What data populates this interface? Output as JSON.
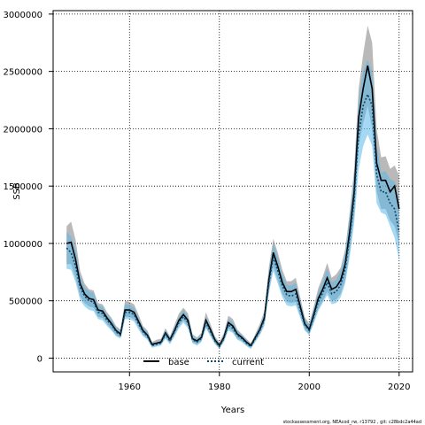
{
  "chart_data": {
    "type": "line",
    "title": "",
    "xlabel": "Years",
    "ylabel": "SSB",
    "xlim": [
      1943,
      2023
    ],
    "ylim": [
      -120000,
      3030000
    ],
    "xticks": [
      1960,
      1980,
      2000,
      2020
    ],
    "yticks": [
      0,
      500000,
      1000000,
      1500000,
      2000000,
      2500000,
      3000000
    ],
    "ytick_labels": [
      "0",
      "500000",
      "1000000",
      "1500000",
      "2000000",
      "2500000",
      "3000000"
    ],
    "grid": true,
    "legend_position": "bottom-center",
    "x": [
      1946,
      1947,
      1948,
      1949,
      1950,
      1951,
      1952,
      1953,
      1954,
      1955,
      1956,
      1957,
      1958,
      1959,
      1960,
      1961,
      1962,
      1963,
      1964,
      1965,
      1966,
      1967,
      1968,
      1969,
      1970,
      1971,
      1972,
      1973,
      1974,
      1975,
      1976,
      1977,
      1978,
      1979,
      1980,
      1981,
      1982,
      1983,
      1984,
      1985,
      1986,
      1987,
      1988,
      1989,
      1990,
      1991,
      1992,
      1993,
      1994,
      1995,
      1996,
      1997,
      1998,
      1999,
      2000,
      2001,
      2002,
      2003,
      2004,
      2005,
      2006,
      2007,
      2008,
      2009,
      2010,
      2011,
      2012,
      2013,
      2014,
      2015,
      2016,
      2017,
      2018,
      2019,
      2020
    ],
    "series": [
      {
        "name": "base",
        "color": "#000000",
        "band_color": "#7f7f7f",
        "values": [
          1000000,
          1010000,
          860000,
          650000,
          560000,
          520000,
          510000,
          420000,
          410000,
          350000,
          300000,
          240000,
          210000,
          420000,
          420000,
          400000,
          320000,
          240000,
          200000,
          120000,
          130000,
          140000,
          220000,
          160000,
          240000,
          330000,
          380000,
          330000,
          170000,
          150000,
          180000,
          330000,
          250000,
          160000,
          110000,
          180000,
          310000,
          280000,
          210000,
          180000,
          140000,
          110000,
          180000,
          250000,
          350000,
          680000,
          920000,
          800000,
          660000,
          580000,
          580000,
          600000,
          450000,
          300000,
          250000,
          380000,
          520000,
          600000,
          700000,
          600000,
          620000,
          680000,
          820000,
          1100000,
          1450000,
          2100000,
          2350000,
          2550000,
          2350000,
          1700000,
          1550000,
          1550000,
          1450000,
          1500000,
          1300000
        ],
        "lower": [
          820000,
          820000,
          700000,
          540000,
          480000,
          450000,
          440000,
          360000,
          350000,
          300000,
          250000,
          200000,
          180000,
          360000,
          360000,
          340000,
          270000,
          200000,
          170000,
          100000,
          110000,
          120000,
          180000,
          130000,
          200000,
          280000,
          330000,
          280000,
          140000,
          120000,
          150000,
          270000,
          200000,
          130000,
          90000,
          150000,
          260000,
          230000,
          170000,
          150000,
          115000,
          90000,
          150000,
          210000,
          300000,
          580000,
          800000,
          680000,
          560000,
          490000,
          480000,
          490000,
          370000,
          250000,
          210000,
          320000,
          430000,
          500000,
          580000,
          500000,
          510000,
          560000,
          680000,
          920000,
          1250000,
          1850000,
          2050000,
          2200000,
          2000000,
          1450000,
          1300000,
          1300000,
          1200000,
          1150000,
          1000000
        ],
        "upper": [
          1150000,
          1190000,
          1030000,
          760000,
          650000,
          600000,
          590000,
          480000,
          470000,
          400000,
          350000,
          280000,
          250000,
          500000,
          490000,
          470000,
          380000,
          280000,
          240000,
          140000,
          160000,
          170000,
          260000,
          190000,
          290000,
          390000,
          440000,
          390000,
          210000,
          180000,
          220000,
          400000,
          300000,
          190000,
          140000,
          220000,
          370000,
          340000,
          250000,
          210000,
          170000,
          130000,
          210000,
          300000,
          410000,
          790000,
          1040000,
          920000,
          770000,
          670000,
          670000,
          700000,
          530000,
          360000,
          300000,
          450000,
          610000,
          710000,
          830000,
          700000,
          730000,
          790000,
          950000,
          1270000,
          1650000,
          2350000,
          2650000,
          2900000,
          2750000,
          2000000,
          1750000,
          1760000,
          1650000,
          1680000,
          1590000
        ]
      },
      {
        "name": "current",
        "color": "#0b4a6e",
        "band_color": "#5bb8e8",
        "values": [
          960000,
          920000,
          800000,
          620000,
          540000,
          500000,
          490000,
          400000,
          390000,
          330000,
          290000,
          230000,
          200000,
          400000,
          400000,
          380000,
          300000,
          230000,
          190000,
          110000,
          120000,
          130000,
          210000,
          150000,
          230000,
          310000,
          360000,
          310000,
          160000,
          140000,
          170000,
          310000,
          230000,
          150000,
          100000,
          170000,
          290000,
          260000,
          200000,
          170000,
          130000,
          100000,
          170000,
          240000,
          330000,
          650000,
          880000,
          760000,
          630000,
          550000,
          540000,
          560000,
          420000,
          290000,
          240000,
          360000,
          490000,
          570000,
          660000,
          560000,
          580000,
          640000,
          780000,
          1050000,
          1380000,
          1950000,
          2200000,
          2300000,
          2200000,
          1600000,
          1450000,
          1450000,
          1350000,
          1300000,
          1100000
        ],
        "lower": [
          780000,
          770000,
          660000,
          510000,
          450000,
          420000,
          410000,
          340000,
          330000,
          280000,
          240000,
          190000,
          170000,
          340000,
          340000,
          320000,
          250000,
          190000,
          160000,
          90000,
          100000,
          110000,
          170000,
          120000,
          190000,
          260000,
          310000,
          260000,
          130000,
          110000,
          140000,
          260000,
          190000,
          120000,
          80000,
          140000,
          240000,
          220000,
          160000,
          140000,
          105000,
          80000,
          140000,
          200000,
          280000,
          560000,
          760000,
          650000,
          530000,
          460000,
          450000,
          460000,
          350000,
          240000,
          200000,
          300000,
          410000,
          480000,
          550000,
          470000,
          480000,
          530000,
          650000,
          880000,
          1180000,
          1650000,
          1850000,
          1950000,
          1850000,
          1350000,
          1270000,
          1250000,
          1150000,
          1050000,
          850000
        ],
        "upper": [
          1100000,
          1060000,
          950000,
          720000,
          620000,
          580000,
          570000,
          460000,
          450000,
          380000,
          340000,
          270000,
          240000,
          470000,
          460000,
          440000,
          350000,
          270000,
          230000,
          130000,
          140000,
          150000,
          250000,
          180000,
          270000,
          360000,
          420000,
          360000,
          190000,
          170000,
          200000,
          360000,
          270000,
          180000,
          120000,
          200000,
          340000,
          310000,
          240000,
          200000,
          160000,
          120000,
          200000,
          280000,
          390000,
          750000,
          1000000,
          880000,
          730000,
          640000,
          630000,
          660000,
          500000,
          340000,
          290000,
          430000,
          580000,
          670000,
          780000,
          660000,
          680000,
          760000,
          920000,
          1230000,
          1600000,
          2250000,
          2500000,
          2600000,
          2500000,
          1850000,
          1620000,
          1630000,
          1560000,
          1540000,
          1370000
        ]
      }
    ]
  },
  "footer_text": "stockassessment.org, NEAcod_rw, r13792 , git: c28bdc2a44ad"
}
